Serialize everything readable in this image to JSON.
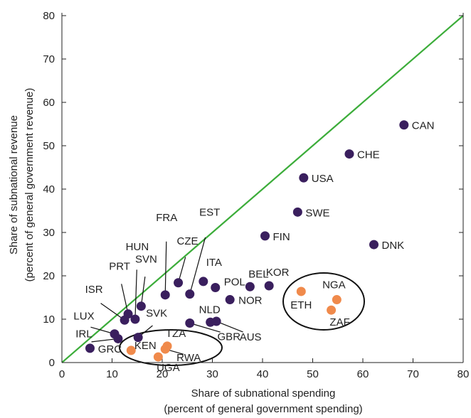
{
  "chart_data": {
    "type": "scatter",
    "xlabel_line1": "Share of subnational spending",
    "xlabel_line2": "(percent of general government spending)",
    "ylabel_line1": "Share of subnational revenue",
    "ylabel_line2": "(percent of general government revenue)",
    "xlim": [
      0,
      80
    ],
    "ylim": [
      0,
      80
    ],
    "x_ticks": [
      0,
      10,
      20,
      30,
      40,
      50,
      60,
      70,
      80
    ],
    "y_ticks": [
      0,
      10,
      20,
      30,
      40,
      50,
      60,
      70,
      80
    ],
    "x_tick_labels": [
      "0",
      "10",
      "20",
      "30",
      "40",
      "50",
      "60",
      "70",
      "80"
    ],
    "y_tick_labels": [
      "0",
      "10",
      "20",
      "30",
      "40",
      "50",
      "60",
      "70",
      "80"
    ],
    "reference_line": {
      "from": [
        0,
        0
      ],
      "to": [
        80,
        80
      ],
      "color": "#3cad3a"
    },
    "colors": {
      "purple": "#3a1f5e",
      "orange": "#f08a4b",
      "axis": "#222222"
    },
    "series": [
      {
        "color_key": "purple",
        "points": [
          {
            "label": "CAN",
            "x": 68.2,
            "y": 54.8
          },
          {
            "label": "CHE",
            "x": 57.3,
            "y": 48.1
          },
          {
            "label": "USA",
            "x": 48.2,
            "y": 42.6
          },
          {
            "label": "SWE",
            "x": 47.0,
            "y": 34.7
          },
          {
            "label": "FIN",
            "x": 40.5,
            "y": 29.2
          },
          {
            "label": "DNK",
            "x": 62.2,
            "y": 27.2
          },
          {
            "label": "BEL",
            "x": 37.5,
            "y": 17.5
          },
          {
            "label": "KOR",
            "x": 41.3,
            "y": 17.7
          },
          {
            "label": "POL",
            "x": 30.6,
            "y": 17.3
          },
          {
            "label": "ITA",
            "x": 28.2,
            "y": 18.7
          },
          {
            "label": "NOR",
            "x": 33.5,
            "y": 14.5
          },
          {
            "label": "NLD",
            "x": 29.6,
            "y": 9.3
          },
          {
            "label": "AUS",
            "x": 30.8,
            "y": 9.5
          },
          {
            "label": "GBR",
            "x": 25.5,
            "y": 9.1
          },
          {
            "label": "EST",
            "x": 25.5,
            "y": 15.8
          },
          {
            "label": "CZE",
            "x": 23.2,
            "y": 18.4
          },
          {
            "label": "FRA",
            "x": 20.6,
            "y": 15.6
          },
          {
            "label": "SVN",
            "x": 15.8,
            "y": 13.0
          },
          {
            "label": "HUN",
            "x": 14.6,
            "y": 10.0
          },
          {
            "label": "PRT",
            "x": 13.2,
            "y": 11.2
          },
          {
            "label": "ISR",
            "x": 12.5,
            "y": 9.8
          },
          {
            "label": "SVK",
            "x": 15.2,
            "y": 5.8
          },
          {
            "label": "LUX",
            "x": 10.5,
            "y": 6.6
          },
          {
            "label": "IRL",
            "x": 11.2,
            "y": 5.5
          },
          {
            "label": "GRC",
            "x": 5.6,
            "y": 3.3
          }
        ]
      },
      {
        "color_key": "orange",
        "points": [
          {
            "label": "ETH",
            "x": 47.7,
            "y": 16.4
          },
          {
            "label": "NGA",
            "x": 54.8,
            "y": 14.5
          },
          {
            "label": "ZAF",
            "x": 53.7,
            "y": 12.1
          },
          {
            "label": "KEN",
            "x": 13.8,
            "y": 2.8
          },
          {
            "label": "TZA",
            "x": 21.0,
            "y": 3.8
          },
          {
            "label": "RWA",
            "x": 20.6,
            "y": 3.1
          },
          {
            "label": "UGA",
            "x": 19.2,
            "y": 1.3
          }
        ]
      }
    ]
  }
}
